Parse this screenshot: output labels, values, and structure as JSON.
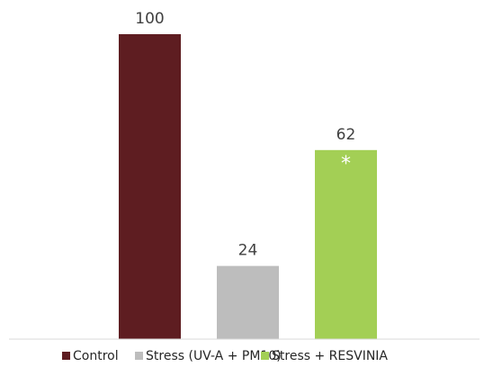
{
  "chart_data": {
    "type": "bar",
    "title": "",
    "xlabel": "",
    "ylabel": "",
    "categories": [
      "Control",
      "Stress (UV-A + PM10)",
      "Stress + RESVINIA"
    ],
    "values": [
      100,
      24,
      62
    ],
    "data_labels": [
      "100",
      "24",
      "62"
    ],
    "colors": [
      "#5e1d21",
      "#bdbdbd",
      "#a3cf55"
    ],
    "annotations": [
      {
        "category": "Stress + RESVINIA",
        "text": "*"
      }
    ],
    "ylim": [
      0,
      100
    ],
    "grid": false,
    "legend": {
      "position": "bottom",
      "entries": [
        "Control",
        "Stress (UV-A + PM10)",
        "Stress + RESVINIA"
      ]
    }
  }
}
